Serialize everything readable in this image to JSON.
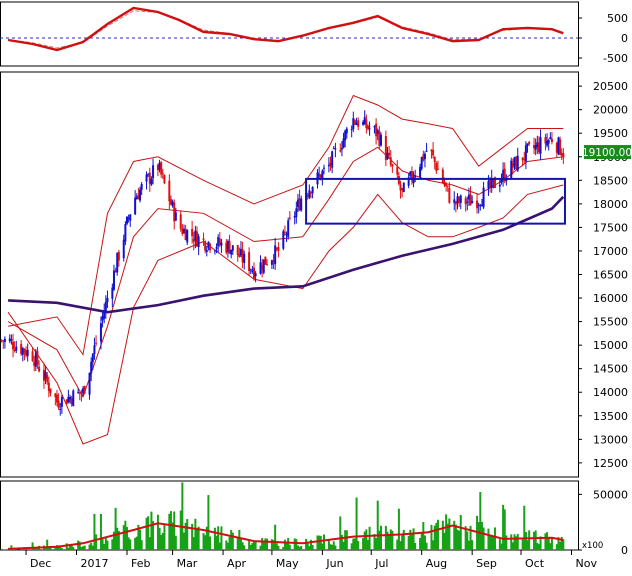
{
  "chart_data": [
    {
      "panel": "oscillator",
      "type": "line",
      "y_ticks": [
        500,
        0,
        -500
      ],
      "ylim": [
        -700,
        900
      ],
      "x": [
        "2016-11-20",
        "2016-12-05",
        "2016-12-20",
        "2017-01-05",
        "2017-01-20",
        "2017-02-05",
        "2017-02-20",
        "2017-03-05",
        "2017-03-20",
        "2017-04-05",
        "2017-04-20",
        "2017-05-05",
        "2017-05-20",
        "2017-06-05",
        "2017-06-20",
        "2017-07-05",
        "2017-07-20",
        "2017-08-05",
        "2017-08-20",
        "2017-09-05",
        "2017-09-20",
        "2017-10-05",
        "2017-10-20",
        "2017-10-27"
      ],
      "series": [
        {
          "values": [
            -50,
            -150,
            -300,
            -100,
            350,
            750,
            650,
            450,
            150,
            100,
            -30,
            -80,
            60,
            250,
            380,
            550,
            250,
            100,
            -80,
            -50,
            220,
            250,
            220,
            120
          ]
        },
        {
          "values": [
            -40,
            -120,
            -250,
            -120,
            300,
            680,
            640,
            460,
            200,
            110,
            0,
            -60,
            40,
            230,
            360,
            520,
            280,
            130,
            -40,
            -30,
            190,
            240,
            220,
            140
          ]
        }
      ]
    },
    {
      "panel": "price",
      "type": "candlestick",
      "y_ticks": [
        20500,
        20000,
        19500,
        19000,
        18500,
        18000,
        17500,
        17000,
        16500,
        16000,
        15500,
        15000,
        14500,
        14000,
        13500,
        13000,
        12500
      ],
      "ylim": [
        12200,
        20800
      ],
      "last_price_label": "19100.00",
      "x_ticks": [
        "Dec",
        "2017",
        "Feb",
        "Mar",
        "Apr",
        "May",
        "Jun",
        "Jul",
        "Aug",
        "Sep",
        "Oct",
        "Nov"
      ],
      "close": {
        "x": [
          "2016-11-20",
          "2016-12-05",
          "2016-12-20",
          "2017-01-05",
          "2017-01-20",
          "2017-02-05",
          "2017-02-20",
          "2017-03-05",
          "2017-03-20",
          "2017-04-05",
          "2017-04-20",
          "2017-05-05",
          "2017-05-20",
          "2017-06-05",
          "2017-06-20",
          "2017-07-05",
          "2017-07-20",
          "2017-08-05",
          "2017-08-20",
          "2017-09-05",
          "2017-09-20",
          "2017-10-05",
          "2017-10-20",
          "2017-10-27"
        ],
        "values": [
          15100,
          14800,
          13800,
          14000,
          16000,
          18100,
          18800,
          17500,
          17200,
          17100,
          16600,
          17000,
          18200,
          18800,
          19800,
          19500,
          18200,
          19200,
          18000,
          18100,
          18600,
          19100,
          19400,
          19100
        ]
      },
      "ma200": {
        "x": [
          "2016-11-20",
          "2016-12-20",
          "2017-01-20",
          "2017-02-20",
          "2017-03-20",
          "2017-04-20",
          "2017-05-20",
          "2017-06-20",
          "2017-07-20",
          "2017-08-20",
          "2017-09-20",
          "2017-10-20",
          "2017-10-27"
        ],
        "values": [
          15950,
          15900,
          15700,
          15850,
          16050,
          16200,
          16250,
          16600,
          16900,
          17150,
          17450,
          17900,
          18150
        ]
      },
      "bollinger_upper": {
        "x": [
          "2016-11-20",
          "2016-12-20",
          "2017-01-05",
          "2017-01-20",
          "2017-02-05",
          "2017-02-20",
          "2017-03-20",
          "2017-04-20",
          "2017-05-20",
          "2017-06-05",
          "2017-06-20",
          "2017-07-05",
          "2017-07-20",
          "2017-08-05",
          "2017-08-20",
          "2017-09-05",
          "2017-09-20",
          "2017-10-05",
          "2017-10-27"
        ],
        "values": [
          15400,
          15600,
          14800,
          17800,
          18900,
          19000,
          18500,
          18000,
          18400,
          19200,
          20300,
          20100,
          19800,
          19700,
          19600,
          18800,
          19200,
          19600,
          19600
        ]
      },
      "bollinger_lower": {
        "x": [
          "2016-11-20",
          "2016-12-20",
          "2017-01-05",
          "2017-01-20",
          "2017-02-05",
          "2017-02-20",
          "2017-03-20",
          "2017-04-20",
          "2017-05-20",
          "2017-06-05",
          "2017-06-20",
          "2017-07-05",
          "2017-07-20",
          "2017-08-05",
          "2017-08-20",
          "2017-09-05",
          "2017-09-20",
          "2017-10-05",
          "2017-10-27"
        ],
        "values": [
          15700,
          14200,
          12900,
          13100,
          15800,
          16800,
          17200,
          16400,
          16200,
          17000,
          17500,
          18200,
          17600,
          17300,
          17300,
          17500,
          17700,
          18200,
          18400
        ]
      },
      "bollinger_mid": {
        "x": [
          "2016-11-20",
          "2016-12-20",
          "2017-01-05",
          "2017-01-20",
          "2017-02-05",
          "2017-02-20",
          "2017-03-20",
          "2017-04-20",
          "2017-05-20",
          "2017-06-05",
          "2017-06-20",
          "2017-07-05",
          "2017-07-20",
          "2017-08-05",
          "2017-08-20",
          "2017-09-05",
          "2017-09-20",
          "2017-10-05",
          "2017-10-27"
        ],
        "values": [
          15500,
          14900,
          13900,
          15400,
          17300,
          17900,
          17800,
          17200,
          17300,
          18100,
          18900,
          19200,
          18700,
          18500,
          18400,
          18200,
          18500,
          18900,
          19000
        ]
      },
      "annotation_box": {
        "x_start": "2017-05-22",
        "x_end": "2017-10-28",
        "y_low": 17580,
        "y_high": 18530
      }
    },
    {
      "panel": "volume",
      "type": "bar",
      "y_ticks": [
        50000,
        0
      ],
      "y_unit_label": "x100",
      "ylim": [
        0,
        62000
      ],
      "ma": {
        "x": [
          "2016-11-20",
          "2016-12-20",
          "2017-01-05",
          "2017-02-05",
          "2017-02-20",
          "2017-03-20",
          "2017-04-20",
          "2017-05-20",
          "2017-06-20",
          "2017-07-20",
          "2017-08-05",
          "2017-08-20",
          "2017-09-20",
          "2017-10-20",
          "2017-10-27"
        ],
        "values": [
          1000,
          3000,
          6000,
          18000,
          24000,
          18000,
          8000,
          6000,
          12000,
          14000,
          16000,
          22000,
          10000,
          11000,
          9000
        ]
      }
    }
  ]
}
